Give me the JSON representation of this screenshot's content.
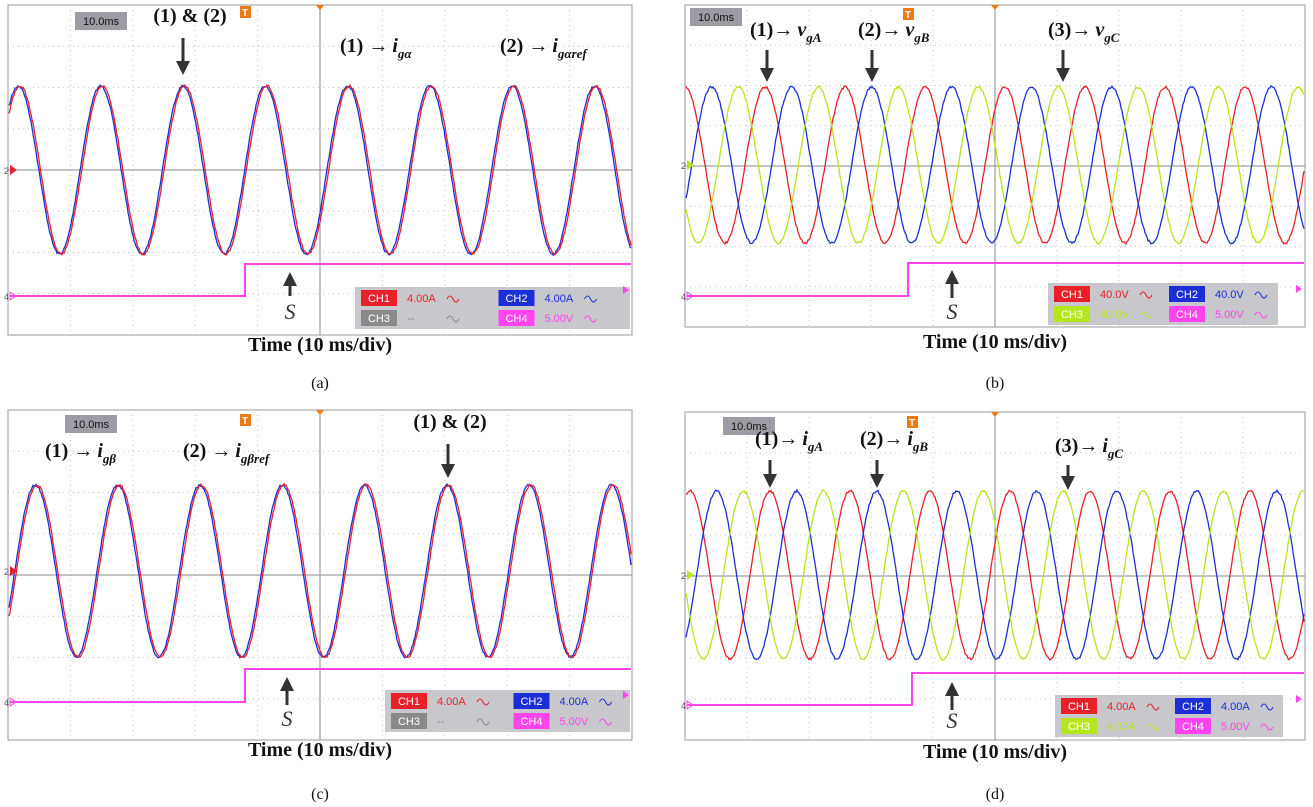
{
  "panels": [
    {
      "caption": "(a)",
      "timebase": "10.0ms",
      "trigger": "T",
      "axis_label": "Time (10 ms/div)",
      "step_label": "S",
      "ref_markers": [
        "2",
        "4"
      ],
      "annotations": [
        {
          "text": "(1) & (2)"
        },
        {
          "text": "(1) →",
          "var": "i",
          "sub": "gα"
        },
        {
          "text": "(2) →",
          "var": "i",
          "sub": "gαref"
        }
      ],
      "channels": [
        {
          "name": "CH1",
          "scale": "4.00A",
          "color": "#e8202a"
        },
        {
          "name": "CH2",
          "scale": "4.00A",
          "color": "#1c2fd6"
        },
        {
          "name": "CH3",
          "scale": "--",
          "color": "#8a8a8a"
        },
        {
          "name": "CH4",
          "scale": "5.00V",
          "color": "#ff44ee"
        }
      ]
    },
    {
      "caption": "(b)",
      "timebase": "10.0ms",
      "trigger": "T",
      "axis_label": "Time (10 ms/div)",
      "step_label": "S",
      "ref_markers": [
        "2",
        "4"
      ],
      "annotations": [
        {
          "text": "(1)→",
          "var": "v",
          "sub": "gA"
        },
        {
          "text": "(2)→",
          "var": "v",
          "sub": "gB"
        },
        {
          "text": "(3)→",
          "var": "v",
          "sub": "gC"
        }
      ],
      "channels": [
        {
          "name": "CH1",
          "scale": "40.0V",
          "color": "#e8202a"
        },
        {
          "name": "CH2",
          "scale": "40.0V",
          "color": "#1c2fd6"
        },
        {
          "name": "CH3",
          "scale": "40.0V",
          "color": "#b5e61d"
        },
        {
          "name": "CH4",
          "scale": "5.00V",
          "color": "#ff44ee"
        }
      ]
    },
    {
      "caption": "(c)",
      "timebase": "10.0ms",
      "trigger": "T",
      "axis_label": "Time (10 ms/div)",
      "step_label": "S",
      "ref_markers": [
        "2",
        "4"
      ],
      "annotations": [
        {
          "text": "(1) →",
          "var": "i",
          "sub": "gβ"
        },
        {
          "text": "(2) →",
          "var": "i",
          "sub": "gβref"
        },
        {
          "text": "(1) & (2)"
        }
      ],
      "channels": [
        {
          "name": "CH1",
          "scale": "4.00A",
          "color": "#e8202a"
        },
        {
          "name": "CH2",
          "scale": "4.00A",
          "color": "#1c2fd6"
        },
        {
          "name": "CH3",
          "scale": "--",
          "color": "#8a8a8a"
        },
        {
          "name": "CH4",
          "scale": "5.00V",
          "color": "#ff44ee"
        }
      ]
    },
    {
      "caption": "(d)",
      "timebase": "10.0ms",
      "trigger": "T",
      "axis_label": "Time (10 ms/div)",
      "step_label": "S",
      "ref_markers": [
        "2",
        "4"
      ],
      "annotations": [
        {
          "text": "(1)→",
          "var": "i",
          "sub": "gA"
        },
        {
          "text": "(2)→",
          "var": "i",
          "sub": "gB"
        },
        {
          "text": "(3)→",
          "var": "i",
          "sub": "gC"
        }
      ],
      "channels": [
        {
          "name": "CH1",
          "scale": "4.00A",
          "color": "#e8202a"
        },
        {
          "name": "CH2",
          "scale": "4.00A",
          "color": "#1c2fd6"
        },
        {
          "name": "CH3",
          "scale": "4.00A",
          "color": "#b5e61d"
        },
        {
          "name": "CH4",
          "scale": "5.00V",
          "color": "#ff44ee"
        }
      ]
    }
  ]
}
